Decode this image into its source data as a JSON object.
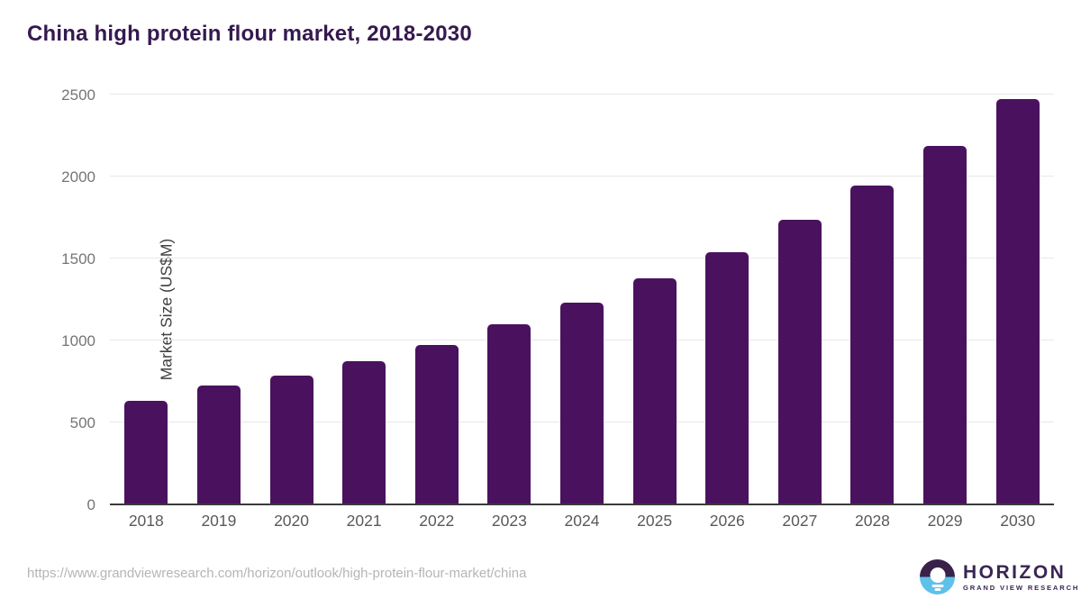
{
  "page": {
    "title": "China high protein flour market, 2018-2030"
  },
  "chart_data": {
    "type": "bar",
    "title": "China high protein flour market, 2018-2030",
    "categories": [
      "2018",
      "2019",
      "2020",
      "2021",
      "2022",
      "2023",
      "2024",
      "2025",
      "2026",
      "2027",
      "2028",
      "2029",
      "2030"
    ],
    "values": [
      630,
      725,
      785,
      875,
      975,
      1100,
      1230,
      1380,
      1540,
      1735,
      1945,
      2185,
      2470
    ],
    "xlabel": "",
    "ylabel": "Market Size (US$M)",
    "ylim": [
      0,
      2500
    ],
    "yticks": [
      0,
      500,
      1000,
      1500,
      2000,
      2500
    ],
    "grid": true,
    "legend": false,
    "bar_color": "#4a125e"
  },
  "footer": {
    "source_url": "https://www.grandviewresearch.com/horizon/outlook/high-protein-flour-market/china",
    "logo": {
      "brand": "HORIZON",
      "sub_brand": "GRAND VIEW RESEARCH",
      "icon": "horizon-sunset-icon",
      "icon_colors": {
        "top": "#3a2148",
        "bottom": "#5ec1ea",
        "sun": "#ffffff"
      }
    }
  },
  "colors": {
    "title": "#35194e",
    "bar": "#4a125e",
    "gridline": "#e8e8e8",
    "axis_line": "#3a3a3a",
    "tick_label": "#757575",
    "x_label": "#595959",
    "background": "#ffffff"
  }
}
